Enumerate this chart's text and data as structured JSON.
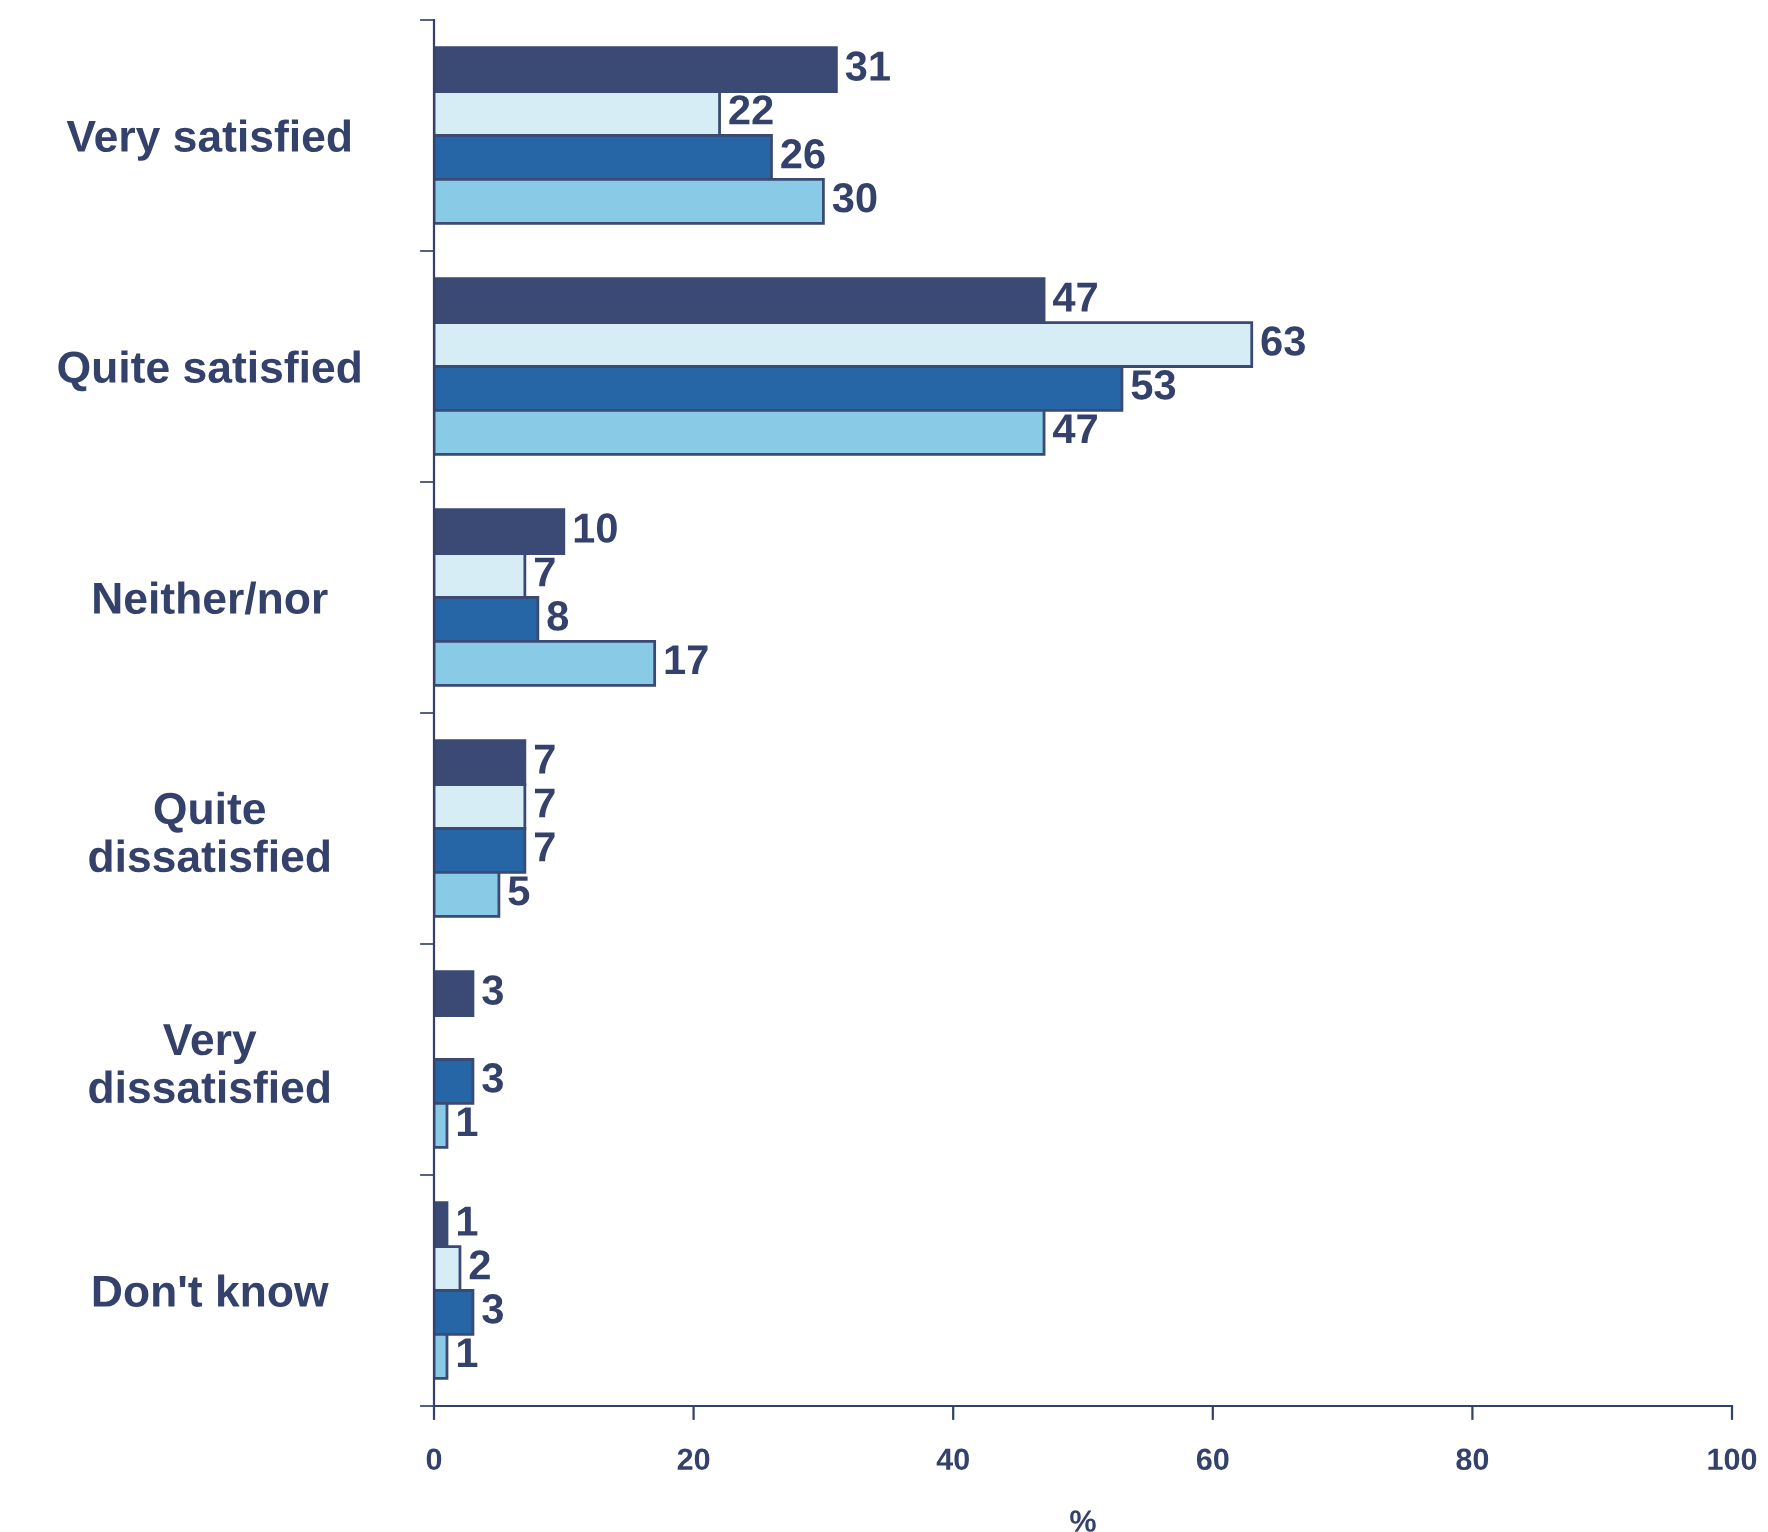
{
  "chart_data": {
    "type": "bar",
    "orientation": "horizontal",
    "xlabel": "%",
    "categories": [
      "Very satisfied",
      "Quite satisfied",
      "Neither/nor",
      "Quite\ndissatisfied",
      "Very\ndissatisfied",
      "Don't know"
    ],
    "series": [
      {
        "color": "#3b4a74",
        "values": [
          31,
          47,
          10,
          7,
          3,
          1
        ]
      },
      {
        "color": "#d7edf6",
        "values": [
          22,
          63,
          7,
          7,
          null,
          2
        ]
      },
      {
        "color": "#2665a6",
        "values": [
          26,
          53,
          8,
          7,
          3,
          3
        ]
      },
      {
        "color": "#89cbe6",
        "values": [
          30,
          47,
          17,
          5,
          1,
          1
        ]
      }
    ],
    "xlim": [
      0,
      100
    ],
    "xticks": [
      0,
      20,
      40,
      60,
      80,
      100
    ],
    "data_labels": true,
    "grid": false,
    "legend": false
  }
}
